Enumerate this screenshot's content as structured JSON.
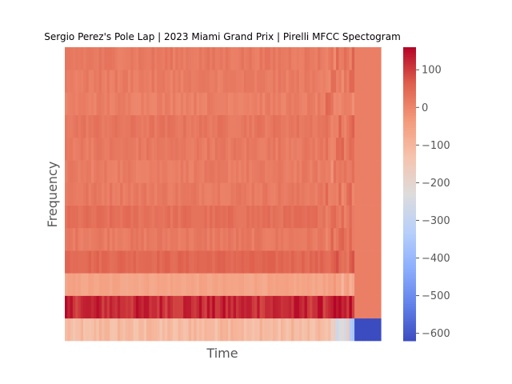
{
  "chart_data": {
    "type": "heatmap",
    "title": "Sergio Perez's Pole Lap | 2023 Miami Grand Prix | Pirelli MFCC Spectogram",
    "xlabel": "Time",
    "ylabel": "Frequency",
    "colormap": "coolwarm",
    "colorbar": {
      "vmin": -620,
      "vmax": 160,
      "ticks": [
        100,
        0,
        -100,
        -200,
        -300,
        -400,
        -500,
        -600
      ],
      "tick_labels": [
        "100",
        "0",
        "−100",
        "−200",
        "−300",
        "−400",
        "−500",
        "−600"
      ]
    },
    "coefficients": 13,
    "time_frames": 120,
    "active_frames": 110,
    "band_means": [
      -620,
      120,
      -60,
      50,
      20,
      35,
      20,
      15,
      20,
      25,
      10,
      15,
      20
    ],
    "padding_value": 10,
    "grid": false
  }
}
